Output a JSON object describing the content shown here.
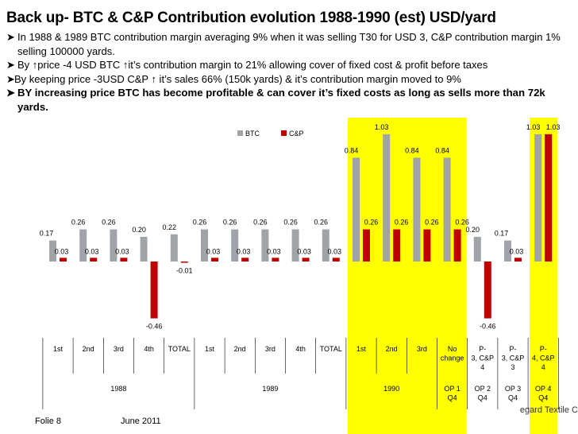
{
  "title": "Back up- BTC & C&P Contribution evolution 1988-1990 (est) USD/yard",
  "bullets": [
    {
      "text": "In 1988 & 1989 BTC contribution margin averaging 9% when it was selling T30 for USD 3, C&P contribution margin 1% selling  100000 yards.",
      "bold": false
    },
    {
      "text": "By ↑price -4 USD BTC ↑it’s contribution margin to 21% allowing cover of fixed cost & profit before taxes",
      "bold": false
    },
    {
      "text": "By keeping price -3USD C&P ↑ it’s sales 66% (150k yards) & it’s contribution margin moved to 9%",
      "bold": false
    },
    {
      "text": " BY increasing price BTC has become profitable & can cover it’s fixed costs as long as sells more than 72k yards.",
      "bold": true
    }
  ],
  "footer": {
    "slide": "Folie 8",
    "date": "June 2011",
    "company_partial": "egard Textile C"
  },
  "colors": {
    "btc": "#a0a3a8",
    "cp": "#c00000",
    "highlight": "#ffff00"
  },
  "chart_data": {
    "type": "bar",
    "title": "",
    "xlabel": "",
    "ylabel": "",
    "ylim": [
      -0.6,
      1.1
    ],
    "grid": false,
    "legend": "top-center",
    "categories": [
      "1st",
      "2nd",
      "3rd",
      "4th",
      "TOTAL",
      "1st",
      "2nd",
      "3rd",
      "4th",
      "TOTAL",
      "1st",
      "2nd",
      "3rd",
      "No change",
      "P-3, C&P 4",
      "P-3, C&P 3",
      "P-4, C&P 4"
    ],
    "category_lines": [
      [
        "1st"
      ],
      [
        "2nd"
      ],
      [
        "3rd"
      ],
      [
        "4th"
      ],
      [
        "TOTAL"
      ],
      [
        "1st"
      ],
      [
        "2nd"
      ],
      [
        "3rd"
      ],
      [
        "4th"
      ],
      [
        "TOTAL"
      ],
      [
        "1st"
      ],
      [
        "2nd"
      ],
      [
        "3rd"
      ],
      [
        "No",
        "change"
      ],
      [
        "P-",
        "3, C&P",
        "4"
      ],
      [
        "P-",
        "3, C&P",
        "3"
      ],
      [
        "P-",
        "4, C&P",
        "4"
      ]
    ],
    "groups": [
      {
        "label": "1988",
        "start": 0,
        "end": 4
      },
      {
        "label": "1989",
        "start": 5,
        "end": 9
      },
      {
        "label": "1990",
        "start": 10,
        "end": 12
      },
      {
        "label": "OP 1 Q4",
        "lines": [
          "OP 1",
          "Q4"
        ],
        "start": 13,
        "end": 13
      },
      {
        "label": "OP 2 Q4",
        "lines": [
          "OP 2",
          "Q4"
        ],
        "start": 14,
        "end": 14
      },
      {
        "label": "OP 3 Q4",
        "lines": [
          "OP 3",
          "Q4"
        ],
        "start": 15,
        "end": 15
      },
      {
        "label": "OP 4 Q4",
        "lines": [
          "OP 4",
          "Q4"
        ],
        "start": 16,
        "end": 16
      }
    ],
    "highlighted": [
      10,
      11,
      12,
      13,
      16
    ],
    "series": [
      {
        "name": "BTC",
        "values": [
          0.17,
          0.26,
          0.26,
          0.2,
          0.22,
          0.26,
          0.26,
          0.26,
          0.26,
          0.26,
          0.84,
          1.03,
          0.84,
          0.84,
          0.2,
          0.17,
          1.03
        ],
        "labels": [
          "0.17",
          "0.26",
          "0.26",
          "0.20",
          "0.22",
          "0.26",
          "0.26",
          "0.26",
          "0.26",
          "0.26",
          "0.84",
          "1.03",
          "0.84",
          "0.84",
          "0.20",
          "0.17",
          "1.03"
        ]
      },
      {
        "name": "C&P",
        "values": [
          0.03,
          0.03,
          0.03,
          -0.46,
          -0.01,
          0.03,
          0.03,
          0.03,
          0.03,
          0.03,
          0.26,
          0.26,
          0.26,
          0.26,
          -0.46,
          0.03,
          1.03
        ],
        "labels": [
          "0.03",
          "0.03",
          "0.03",
          "-0.46",
          "-0.01",
          "0.03",
          "0.03",
          "0.03",
          "0.03",
          "0.03",
          "0.26",
          "0.26",
          "0.26",
          "0.26",
          "-0.46",
          "0.03",
          "1.03"
        ]
      }
    ]
  }
}
